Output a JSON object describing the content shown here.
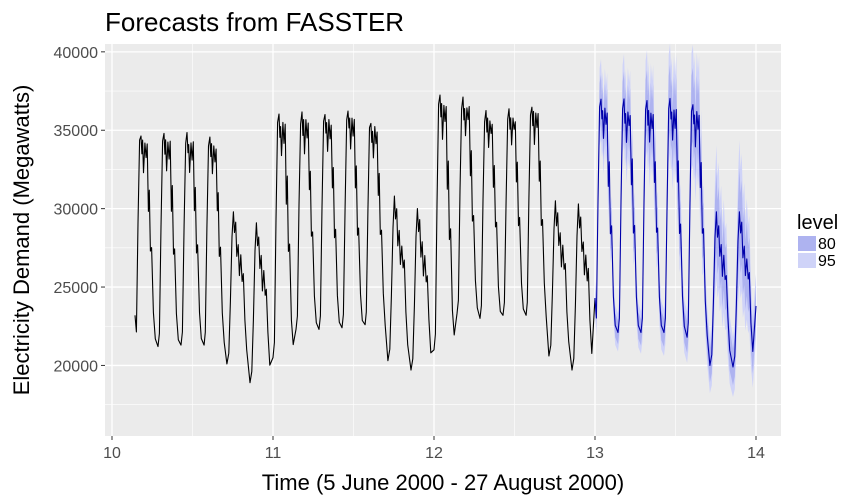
{
  "chart_data": {
    "type": "line",
    "title": "Forecasts from FASSTER",
    "xlabel": "Time (5 June 2000 - 27 August 2000)",
    "ylabel": "Electricity Demand (Megawatts)",
    "xlim": [
      10,
      14
    ],
    "ylim": [
      15500,
      40500
    ],
    "x_ticks": [
      10,
      11,
      12,
      13,
      14
    ],
    "x_tick_labels": [
      "10",
      "11",
      "12",
      "13",
      "14"
    ],
    "y_ticks": [
      20000,
      25000,
      30000,
      35000,
      40000
    ],
    "y_tick_labels": [
      "20000",
      "25000",
      "30000",
      "35000",
      "40000"
    ],
    "grid": true,
    "legend": {
      "title": "level",
      "position": "right",
      "entries": [
        {
          "label": "80",
          "color": "#aeb3f0"
        },
        {
          "label": "95",
          "color": "#cfd3f8"
        }
      ]
    },
    "colors": {
      "panel": "#ebebeb",
      "grid": "#ffffff",
      "actual": "#000000",
      "forecast": "#0000aa",
      "band80": "#aeb3f0",
      "band95": "#cfd3f8"
    },
    "series": [
      {
        "role": "actual",
        "days": [
          {
            "start": 10.143,
            "peak": 35200,
            "low": 21300,
            "shape": "weekday",
            "preLow": 23200
          },
          {
            "start": 10.286,
            "peak": 35300,
            "low": 21200,
            "shape": "weekday"
          },
          {
            "start": 10.429,
            "peak": 35200,
            "low": 21300,
            "shape": "weekday"
          },
          {
            "start": 10.571,
            "peak": 35000,
            "low": 21300,
            "shape": "weekday"
          },
          {
            "start": 10.714,
            "peak": 29800,
            "low": 20100,
            "shape": "weekend"
          },
          {
            "start": 10.857,
            "peak": 29100,
            "low": 18900,
            "shape": "weekend"
          },
          {
            "start": 11.0,
            "peak": 36500,
            "low": 20500,
            "shape": "weekday"
          },
          {
            "start": 11.143,
            "peak": 36500,
            "low": 22300,
            "shape": "weekday"
          },
          {
            "start": 11.286,
            "peak": 36600,
            "low": 22300,
            "shape": "weekday"
          },
          {
            "start": 11.429,
            "peak": 36700,
            "low": 22400,
            "shape": "weekday"
          },
          {
            "start": 11.571,
            "peak": 36000,
            "low": 22600,
            "shape": "weekday"
          },
          {
            "start": 11.714,
            "peak": 30800,
            "low": 20300,
            "shape": "weekend"
          },
          {
            "start": 11.857,
            "peak": 30000,
            "low": 19700,
            "shape": "weekend"
          },
          {
            "start": 12.0,
            "peak": 37800,
            "low": 21000,
            "shape": "weekday"
          },
          {
            "start": 12.143,
            "peak": 37500,
            "low": 23300,
            "shape": "weekday"
          },
          {
            "start": 12.286,
            "peak": 36600,
            "low": 23000,
            "shape": "weekday"
          },
          {
            "start": 12.429,
            "peak": 36800,
            "low": 23200,
            "shape": "weekday"
          },
          {
            "start": 12.571,
            "peak": 37000,
            "low": 23200,
            "shape": "weekday"
          },
          {
            "start": 12.714,
            "peak": 30500,
            "low": 20600,
            "shape": "weekend"
          },
          {
            "start": 12.857,
            "peak": 30300,
            "low": 19700,
            "shape": "weekend",
            "endAt": 13.0,
            "endValue": 24300
          }
        ]
      },
      {
        "role": "forecast",
        "days": [
          {
            "start": 13.0,
            "peak": 37400,
            "low": 22100,
            "shape": "weekday",
            "preLow": 24300
          },
          {
            "start": 13.143,
            "peak": 37300,
            "low": 22100,
            "shape": "weekday"
          },
          {
            "start": 13.286,
            "peak": 37300,
            "low": 22100,
            "shape": "weekday"
          },
          {
            "start": 13.429,
            "peak": 37400,
            "low": 22100,
            "shape": "weekday"
          },
          {
            "start": 13.571,
            "peak": 37200,
            "low": 21800,
            "shape": "weekday"
          },
          {
            "start": 13.714,
            "peak": 29800,
            "low": 20000,
            "shape": "weekend"
          },
          {
            "start": 13.857,
            "peak": 29800,
            "low": 19900,
            "shape": "weekend",
            "endAt": 14.0,
            "endValue": 23800
          }
        ],
        "band80_halfwidth": 1100,
        "band95_halfwidth": 1800,
        "band_growth": 0.9
      }
    ]
  }
}
